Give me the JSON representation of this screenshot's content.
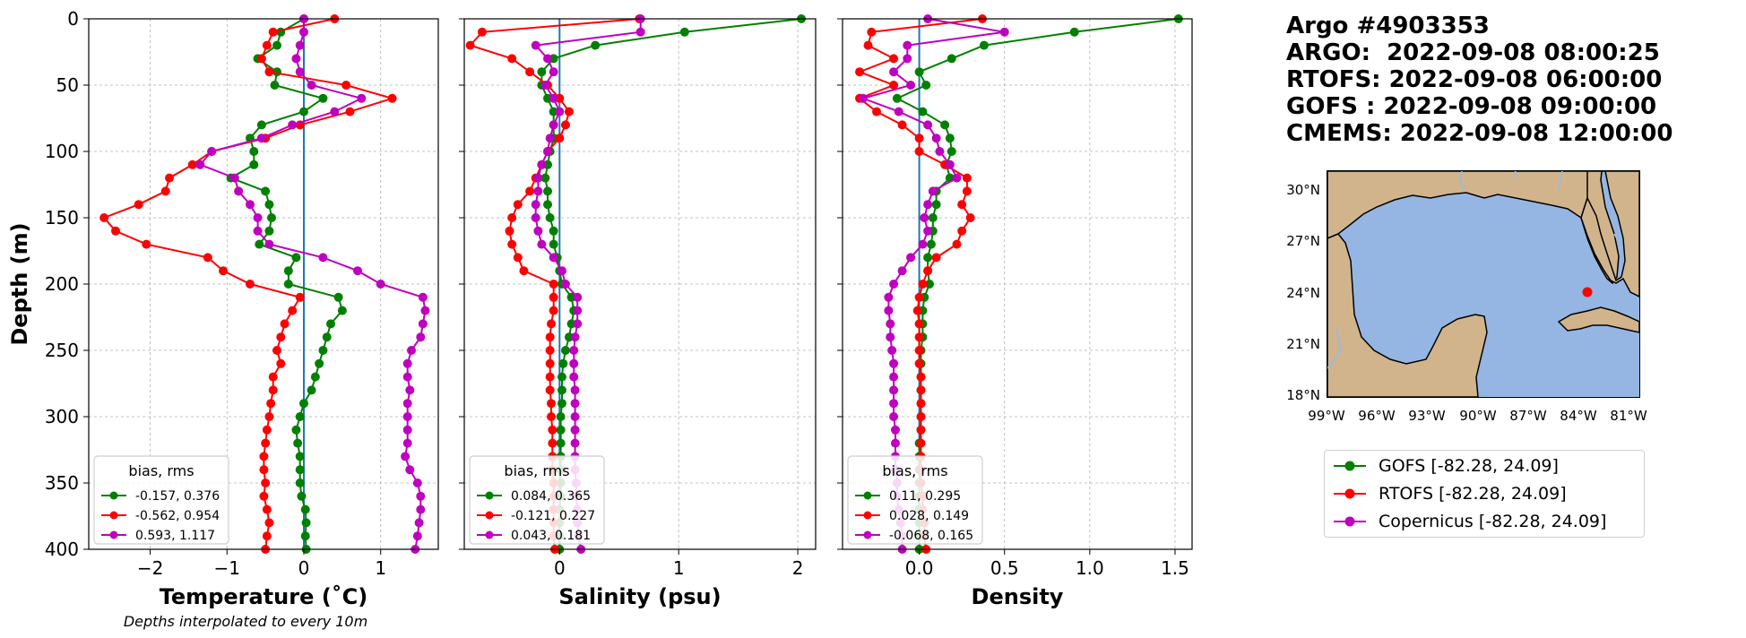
{
  "header": {
    "lines": [
      "Argo #4903353",
      "ARGO:  2022-09-08 08:00:25",
      "RTOFS: 2022-09-08 06:00:00",
      "GOFS : 2022-09-08 09:00:00",
      "CMEMS: 2022-09-08 12:00:00"
    ]
  },
  "colors": {
    "GOFS": "#008000",
    "RTOFS": "#ff0000",
    "Copernicus": "#bf00bf",
    "zero_line": "#1f77b4",
    "land": "#d2b48c",
    "ocean": "#95b6e2"
  },
  "chart_data": [
    {
      "type": "line",
      "xlabel": "Temperature (˚C)",
      "ylabel": "Depth (m)",
      "note": "Depths interpolated to every 10m",
      "xlim": [
        -2.8,
        1.75
      ],
      "ylim": [
        400,
        0
      ],
      "xticks": [
        -2,
        -1,
        0,
        1
      ],
      "xtick_labels": [
        "−2",
        "−1",
        "0",
        "1"
      ],
      "yticks": [
        0,
        50,
        100,
        150,
        200,
        250,
        300,
        350,
        400
      ],
      "grid": true,
      "legend": {
        "title": "bias, rms",
        "placement": "lower-left",
        "entries": [
          "-0.157, 0.376",
          "-0.562, 0.954",
          "0.593, 1.117"
        ]
      },
      "depth": [
        0,
        10,
        20,
        30,
        40,
        50,
        60,
        70,
        80,
        90,
        100,
        110,
        120,
        130,
        140,
        150,
        160,
        170,
        180,
        190,
        200,
        210,
        220,
        230,
        240,
        250,
        260,
        270,
        280,
        290,
        300,
        310,
        320,
        330,
        340,
        350,
        360,
        370,
        380,
        390,
        400
      ],
      "series": [
        {
          "key": "GOFS",
          "values": [
            0.0,
            -0.3,
            -0.35,
            -0.6,
            -0.35,
            -0.38,
            0.25,
            0.0,
            -0.55,
            -0.7,
            -0.65,
            -0.65,
            -0.95,
            -0.5,
            -0.45,
            -0.42,
            -0.45,
            -0.58,
            -0.1,
            -0.2,
            -0.2,
            0.45,
            0.5,
            0.35,
            0.3,
            0.25,
            0.2,
            0.15,
            0.1,
            0.0,
            -0.05,
            -0.1,
            -0.08,
            -0.05,
            -0.05,
            -0.05,
            -0.03,
            0.02,
            0.03,
            0.02,
            0.03
          ]
        },
        {
          "key": "RTOFS",
          "values": [
            0.4,
            -0.4,
            -0.48,
            -0.55,
            -0.45,
            0.55,
            1.15,
            0.6,
            -0.05,
            -0.5,
            -1.2,
            -1.45,
            -1.75,
            -1.8,
            -2.15,
            -2.6,
            -2.45,
            -2.05,
            -1.25,
            -1.05,
            -0.7,
            -0.05,
            -0.15,
            -0.25,
            -0.3,
            -0.35,
            -0.3,
            -0.4,
            -0.4,
            -0.43,
            -0.45,
            -0.48,
            -0.5,
            -0.52,
            -0.52,
            -0.5,
            -0.52,
            -0.48,
            -0.45,
            -0.48,
            -0.5
          ]
        },
        {
          "key": "Copernicus",
          "values": [
            0.0,
            0.0,
            -0.05,
            -0.1,
            -0.05,
            0.1,
            0.75,
            0.4,
            -0.15,
            -0.55,
            -1.2,
            -1.35,
            -0.9,
            -0.85,
            -0.7,
            -0.6,
            -0.6,
            -0.45,
            0.25,
            0.7,
            1.0,
            1.55,
            1.58,
            1.55,
            1.52,
            1.4,
            1.35,
            1.35,
            1.38,
            1.35,
            1.35,
            1.35,
            1.35,
            1.32,
            1.38,
            1.48,
            1.52,
            1.52,
            1.5,
            1.48,
            1.45
          ]
        }
      ]
    },
    {
      "type": "line",
      "xlabel": "Salinity (psu)",
      "xlim": [
        -0.8,
        2.15
      ],
      "ylim": [
        400,
        0
      ],
      "xticks": [
        0,
        1,
        2
      ],
      "xtick_labels": [
        "0",
        "1",
        "2"
      ],
      "yticks": [
        0,
        50,
        100,
        150,
        200,
        250,
        300,
        350,
        400
      ],
      "grid": true,
      "legend": {
        "title": "bias, rms",
        "placement": "lower-left",
        "entries": [
          "0.084, 0.365",
          "-0.121, 0.227",
          "0.043, 0.181"
        ]
      },
      "depth": [
        0,
        10,
        20,
        30,
        40,
        50,
        60,
        70,
        80,
        90,
        100,
        110,
        120,
        130,
        140,
        150,
        160,
        170,
        180,
        190,
        200,
        210,
        220,
        230,
        240,
        250,
        260,
        270,
        280,
        290,
        300,
        310,
        320,
        330,
        340,
        350,
        360,
        370,
        380,
        390,
        400
      ],
      "series": [
        {
          "key": "GOFS",
          "values": [
            2.03,
            1.05,
            0.3,
            -0.05,
            -0.15,
            -0.15,
            -0.1,
            -0.05,
            -0.05,
            -0.05,
            -0.08,
            -0.1,
            -0.12,
            -0.1,
            -0.1,
            -0.08,
            -0.05,
            -0.05,
            -0.02,
            0.0,
            0.02,
            0.1,
            0.12,
            0.1,
            0.08,
            0.05,
            0.03,
            0.02,
            0.02,
            0.02,
            0.01,
            0.01,
            0.01,
            0.01,
            0.01,
            0.01,
            0.01,
            0.0,
            0.0,
            0.0,
            0.0
          ]
        },
        {
          "key": "RTOFS",
          "values": [
            0.67,
            -0.65,
            -0.75,
            -0.4,
            -0.25,
            -0.1,
            0.0,
            0.08,
            0.05,
            0.0,
            -0.1,
            -0.15,
            -0.2,
            -0.25,
            -0.35,
            -0.4,
            -0.42,
            -0.4,
            -0.35,
            -0.3,
            -0.05,
            -0.05,
            -0.05,
            -0.07,
            -0.08,
            -0.08,
            -0.08,
            -0.08,
            -0.08,
            -0.07,
            -0.07,
            -0.06,
            -0.06,
            -0.06,
            -0.06,
            -0.05,
            -0.05,
            -0.05,
            -0.05,
            -0.05,
            -0.04
          ]
        },
        {
          "key": "Copernicus",
          "values": [
            0.68,
            0.68,
            -0.2,
            -0.1,
            -0.05,
            -0.12,
            -0.05,
            0.0,
            -0.05,
            -0.08,
            -0.1,
            -0.15,
            -0.18,
            -0.18,
            -0.2,
            -0.2,
            -0.18,
            -0.15,
            -0.05,
            0.02,
            0.05,
            0.15,
            0.15,
            0.15,
            0.13,
            0.12,
            0.12,
            0.12,
            0.13,
            0.13,
            0.13,
            0.13,
            0.13,
            0.13,
            0.13,
            0.14,
            0.14,
            0.15,
            0.15,
            0.16,
            0.18
          ]
        }
      ]
    },
    {
      "type": "line",
      "xlabel": "Density",
      "xlim": [
        -0.45,
        1.6
      ],
      "ylim": [
        400,
        0
      ],
      "xticks": [
        0.0,
        0.5,
        1.0,
        1.5
      ],
      "xtick_labels": [
        "0.0",
        "0.5",
        "1.0",
        "1.5"
      ],
      "yticks": [
        0,
        50,
        100,
        150,
        200,
        250,
        300,
        350,
        400
      ],
      "grid": true,
      "legend": {
        "title": "bias, rms",
        "placement": "lower-left",
        "entries": [
          "0.11, 0.295",
          "0.028, 0.149",
          "-0.068, 0.165"
        ]
      },
      "depth": [
        0,
        10,
        20,
        30,
        40,
        50,
        60,
        70,
        80,
        90,
        100,
        110,
        120,
        130,
        140,
        150,
        160,
        170,
        180,
        190,
        200,
        210,
        220,
        230,
        240,
        250,
        260,
        270,
        280,
        290,
        300,
        310,
        320,
        330,
        340,
        350,
        360,
        370,
        380,
        390,
        400
      ],
      "series": [
        {
          "key": "GOFS",
          "values": [
            1.52,
            0.91,
            0.38,
            0.19,
            0.0,
            0.04,
            -0.13,
            0.02,
            0.15,
            0.18,
            0.19,
            0.16,
            0.18,
            0.1,
            0.1,
            0.08,
            0.08,
            0.07,
            0.05,
            0.05,
            0.06,
            0.03,
            0.02,
            0.02,
            0.02,
            0.01,
            0.01,
            0.01,
            0.01,
            0.01,
            0.01,
            0.01,
            0.0,
            0.0,
            0.0,
            0.0,
            0.0,
            0.0,
            0.0,
            0.0,
            0.0
          ]
        },
        {
          "key": "RTOFS",
          "values": [
            0.37,
            -0.28,
            -0.3,
            -0.15,
            -0.35,
            -0.15,
            -0.35,
            -0.25,
            -0.1,
            0.0,
            0.0,
            0.15,
            0.28,
            0.28,
            0.25,
            0.3,
            0.25,
            0.22,
            0.1,
            0.05,
            0.02,
            0.0,
            -0.01,
            0.0,
            0.0,
            0.0,
            0.0,
            0.01,
            0.01,
            0.01,
            0.01,
            0.01,
            0.01,
            0.01,
            0.01,
            0.01,
            0.02,
            0.02,
            0.03,
            0.03,
            0.04
          ]
        },
        {
          "key": "Copernicus",
          "values": [
            0.05,
            0.5,
            -0.07,
            -0.07,
            -0.15,
            -0.05,
            -0.33,
            -0.12,
            0.05,
            0.1,
            0.12,
            0.18,
            0.22,
            0.08,
            0.05,
            0.03,
            0.05,
            0.02,
            -0.05,
            -0.1,
            -0.15,
            -0.18,
            -0.18,
            -0.17,
            -0.17,
            -0.16,
            -0.15,
            -0.15,
            -0.15,
            -0.15,
            -0.15,
            -0.14,
            -0.14,
            -0.14,
            -0.14,
            -0.13,
            -0.13,
            -0.12,
            -0.11,
            -0.1,
            -0.1
          ]
        }
      ]
    }
  ],
  "map": {
    "x_tick_labels": [
      "99°W",
      "96°W",
      "93°W",
      "90°W",
      "87°W",
      "84°W",
      "81°W"
    ],
    "y_tick_labels": [
      "30°N",
      "27°N",
      "24°N",
      "21°N",
      "18°N"
    ],
    "marker_lon": -82.28,
    "marker_lat": 24.09,
    "legend": [
      {
        "key": "GOFS",
        "label": "GOFS [-82.28, 24.09]"
      },
      {
        "key": "RTOFS",
        "label": "RTOFS [-82.28, 24.09]"
      },
      {
        "key": "Copernicus",
        "label": "Copernicus [-82.28, 24.09]"
      }
    ]
  }
}
